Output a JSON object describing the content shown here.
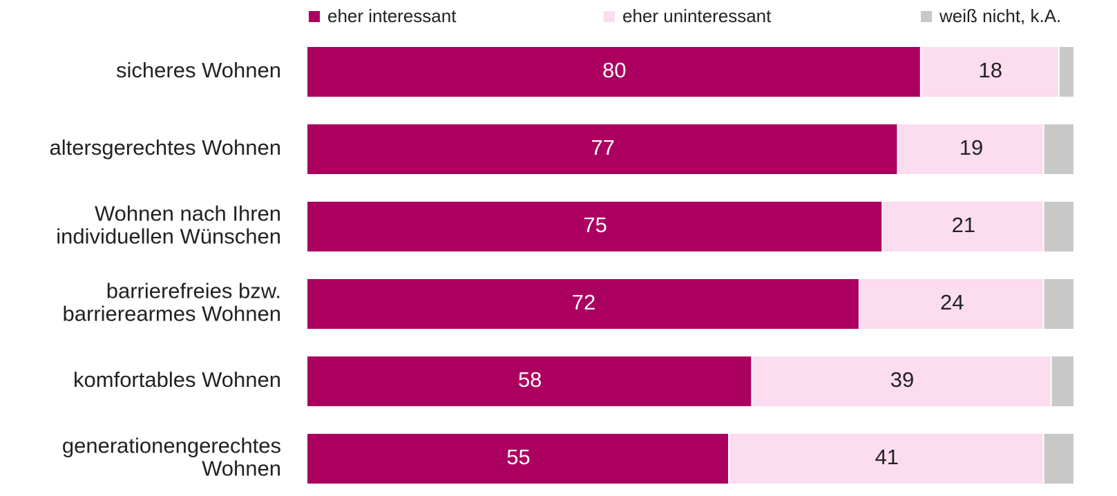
{
  "chart_data": {
    "type": "stacked_bar_horizontal",
    "categories": [
      "sicheres Wohnen",
      "altersgerechtes Wohnen",
      "Wohnen nach Ihren\nindividuellen Wünschen",
      "barrierefreies bzw.\nbarrierearmes Wohnen",
      "komfortables Wohnen",
      "generationengerechtes\nWohnen"
    ],
    "series": [
      {
        "name": "eher interessant",
        "color": "#ab0060",
        "label_color": "#ffffff",
        "values": [
          80,
          77,
          75,
          72,
          58,
          55
        ]
      },
      {
        "name": "eher uninteressant",
        "color": "#fcdcef",
        "label_color": "#222222",
        "values": [
          18,
          19,
          21,
          24,
          39,
          41
        ]
      },
      {
        "name": "weiß nicht, k.A.",
        "color": "#c8c8c8",
        "values": [
          2,
          4,
          4,
          4,
          3,
          4
        ]
      }
    ],
    "xlim": [
      0,
      100
    ],
    "legend": "top"
  }
}
